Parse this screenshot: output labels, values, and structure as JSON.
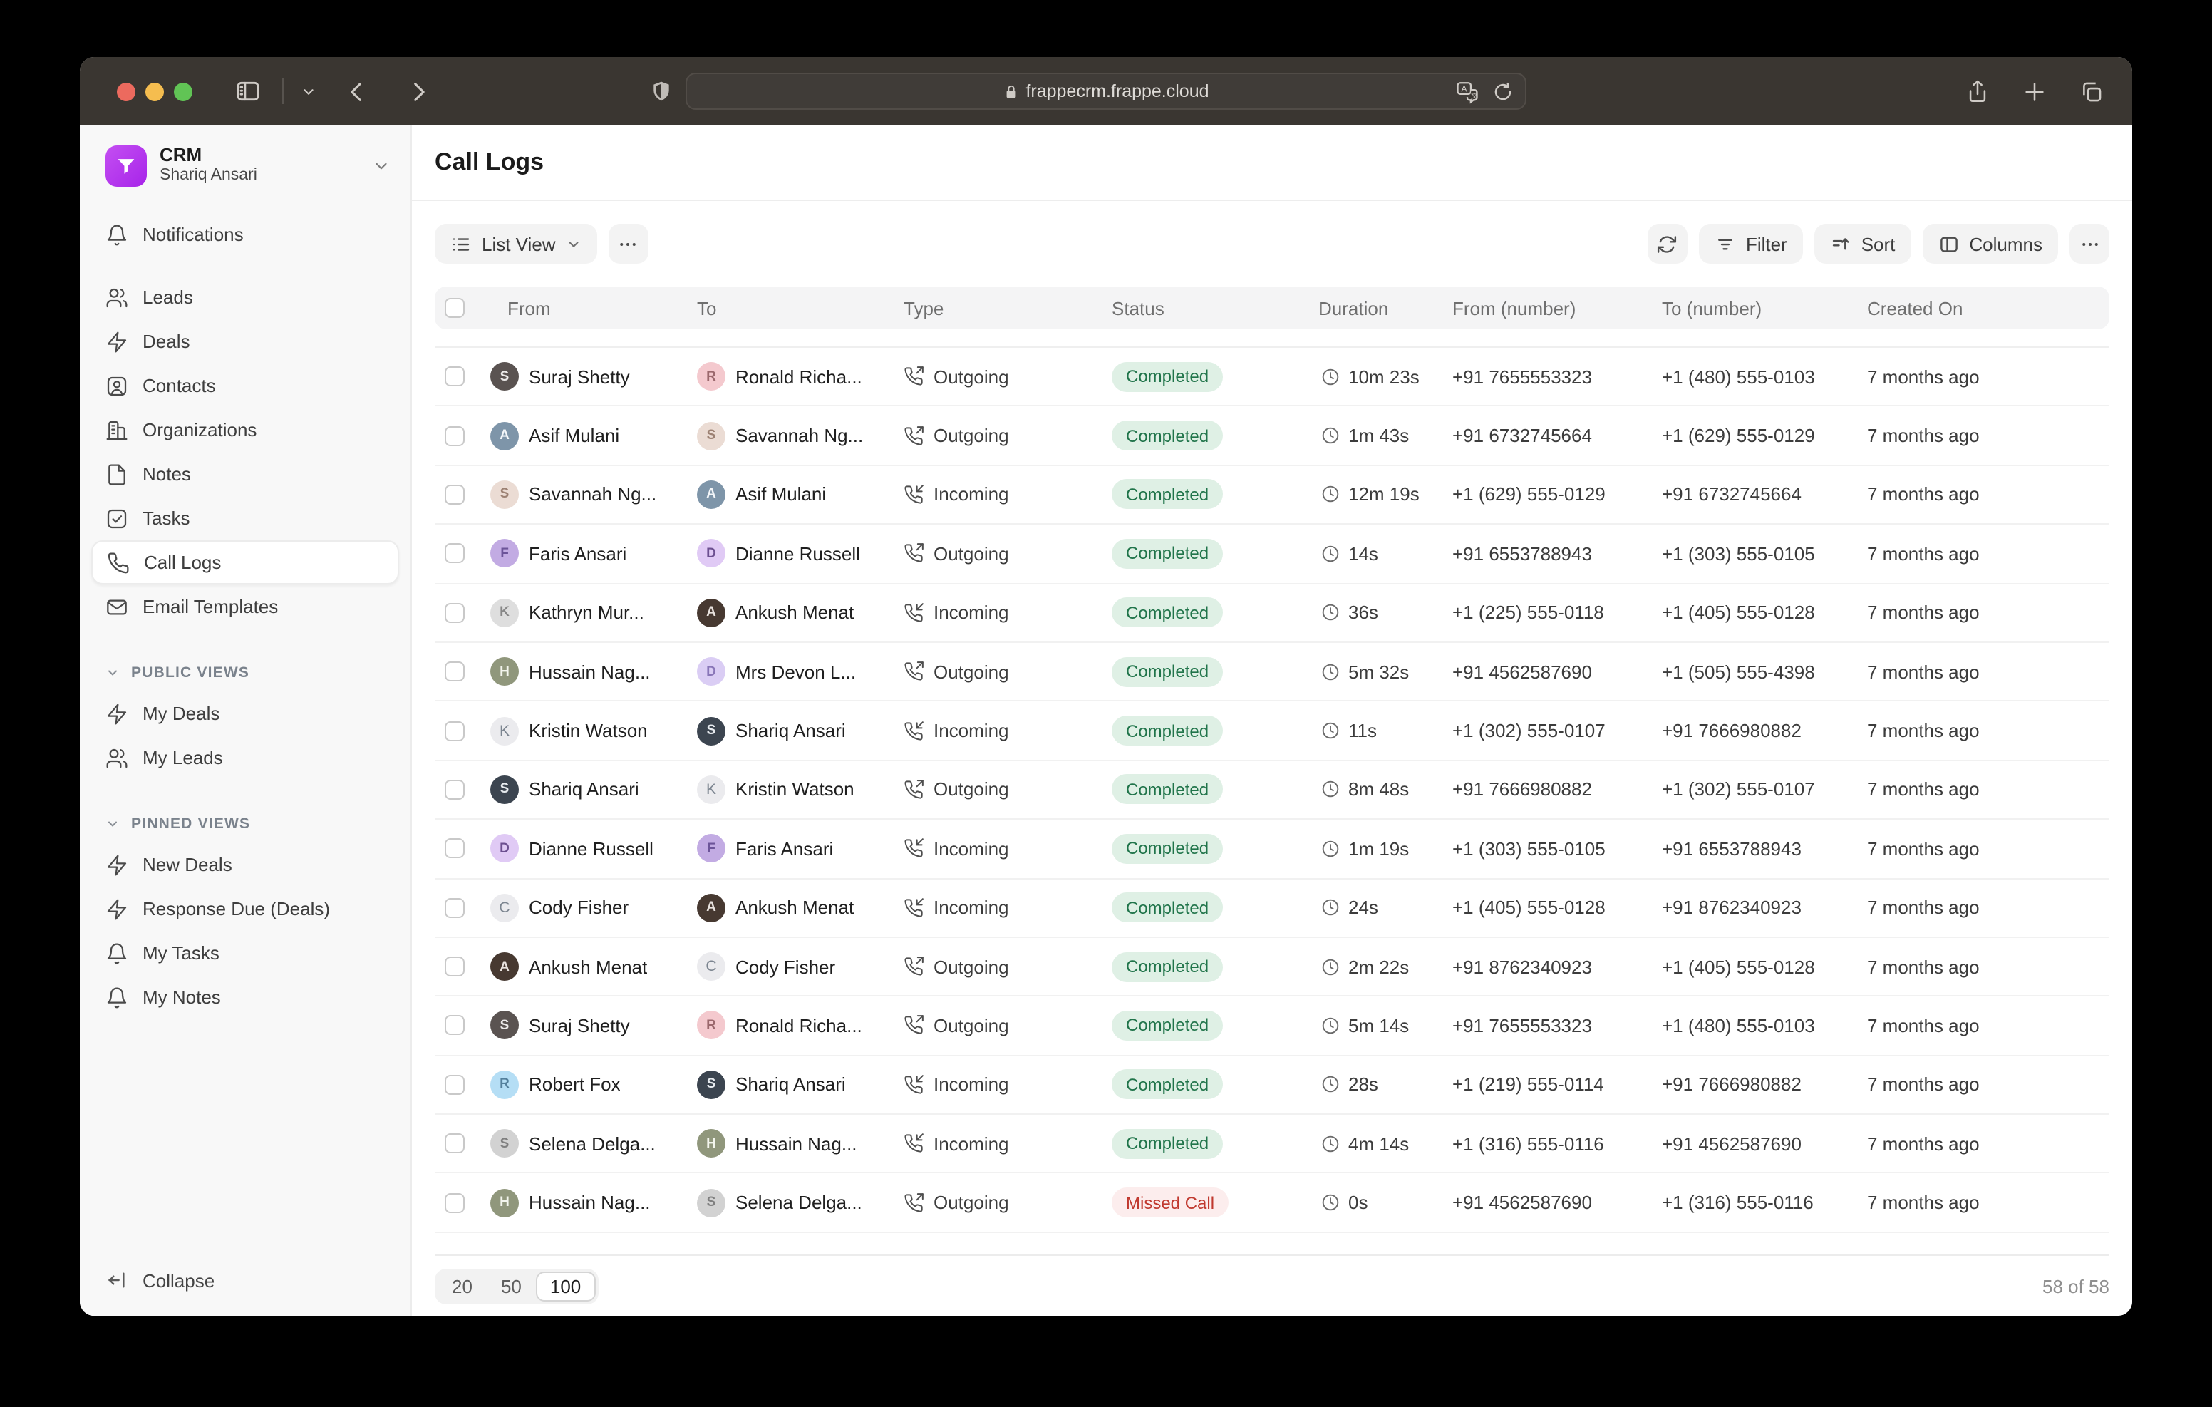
{
  "browser": {
    "url": "frappecrm.frappe.cloud",
    "window_controls": [
      "close",
      "minimize",
      "zoom"
    ]
  },
  "sidebar": {
    "app_name": "CRM",
    "user_name": "Shariq Ansari",
    "items": [
      {
        "label": "Notifications",
        "icon": "bell-icon",
        "active": false
      },
      {
        "label": "Leads",
        "icon": "leads-icon",
        "active": false
      },
      {
        "label": "Deals",
        "icon": "zap-icon",
        "active": false
      },
      {
        "label": "Contacts",
        "icon": "contact-icon",
        "active": false
      },
      {
        "label": "Organizations",
        "icon": "building-icon",
        "active": false
      },
      {
        "label": "Notes",
        "icon": "note-icon",
        "active": false
      },
      {
        "label": "Tasks",
        "icon": "task-icon",
        "active": false
      },
      {
        "label": "Call Logs",
        "icon": "phone-icon",
        "active": true
      },
      {
        "label": "Email Templates",
        "icon": "mail-icon",
        "active": false
      }
    ],
    "sections": [
      {
        "label": "PUBLIC VIEWS",
        "items": [
          {
            "label": "My Deals",
            "icon": "zap-icon"
          },
          {
            "label": "My Leads",
            "icon": "leads-icon"
          }
        ]
      },
      {
        "label": "PINNED VIEWS",
        "items": [
          {
            "label": "New Deals",
            "icon": "zap-icon"
          },
          {
            "label": "Response Due (Deals)",
            "icon": "zap-icon"
          },
          {
            "label": "My Tasks",
            "icon": "bell-icon"
          },
          {
            "label": "My Notes",
            "icon": "bell-icon"
          }
        ]
      }
    ],
    "collapse_label": "Collapse"
  },
  "page": {
    "title": "Call Logs"
  },
  "toolbar": {
    "view_label": "List View",
    "filter_label": "Filter",
    "sort_label": "Sort",
    "columns_label": "Columns"
  },
  "table": {
    "columns": [
      "From",
      "To",
      "Type",
      "Status",
      "Duration",
      "From (number)",
      "To (number)",
      "Created On"
    ],
    "status_styles": {
      "Completed": {
        "bg": "#DFF0E5",
        "fg": "#20744A"
      },
      "Missed Call": {
        "bg": "#FCEDED",
        "fg": "#C0392F"
      }
    },
    "avatars": {
      "Suraj Shetty": {
        "bg": "#5A5351",
        "fg": "#ECEAE9",
        "label": "S",
        "kind": "photo"
      },
      "Ronald Richa...": {
        "bg": "#F4C9CE",
        "fg": "#9B686D",
        "label": "R",
        "kind": "photo"
      },
      "Asif Mulani": {
        "bg": "#7E95A9",
        "fg": "#F3F6F9",
        "label": "A",
        "kind": "photo"
      },
      "Savannah Ng...": {
        "bg": "#EBDCD4",
        "fg": "#9C8173",
        "label": "S",
        "kind": "photo"
      },
      "Faris Ansari": {
        "bg": "#C2ABE3",
        "fg": "#6C5499",
        "label": "F",
        "kind": "photo"
      },
      "Dianne Russell": {
        "bg": "#E0CAF5",
        "fg": "#6C4F90",
        "label": "D",
        "kind": "photo"
      },
      "Kathryn Mur...": {
        "bg": "#DEDEDE",
        "fg": "#878787",
        "label": "K",
        "kind": "photo"
      },
      "Ankush Menat": {
        "bg": "#473931",
        "fg": "#E9E3DF",
        "label": "A",
        "kind": "photo"
      },
      "Hussain Nag...": {
        "bg": "#90977C",
        "fg": "#F3F5ED",
        "label": "H",
        "kind": "photo"
      },
      "Mrs Devon L...": {
        "bg": "#DACDF4",
        "fg": "#8976B8",
        "label": "D",
        "kind": "photo"
      },
      "Kristin Watson": {
        "bg": "#EBEBEE",
        "fg": "#7C8590",
        "label": "K",
        "kind": "letter"
      },
      "Shariq Ansari": {
        "bg": "#3C4550",
        "fg": "#E7EBEF",
        "label": "S",
        "kind": "photo"
      },
      "Cody Fisher": {
        "bg": "#EBEBEE",
        "fg": "#7C8590",
        "label": "C",
        "kind": "letter"
      },
      "Robert Fox": {
        "bg": "#B5DEF5",
        "fg": "#54809C",
        "label": "R",
        "kind": "photo"
      },
      "Selena Delga...": {
        "bg": "#D2D2D2",
        "fg": "#7F7F7F",
        "label": "S",
        "kind": "photo"
      }
    },
    "rows": [
      {
        "from": "Suraj Shetty",
        "to": "Ronald Richa...",
        "type": "Outgoing",
        "status": "Completed",
        "duration": "10m 23s",
        "from_number": "+91 7655553323",
        "to_number": "+1 (480) 555-0103",
        "created": "7 months ago"
      },
      {
        "from": "Asif Mulani",
        "to": "Savannah Ng...",
        "type": "Outgoing",
        "status": "Completed",
        "duration": "1m 43s",
        "from_number": "+91 6732745664",
        "to_number": "+1 (629) 555-0129",
        "created": "7 months ago"
      },
      {
        "from": "Savannah Ng...",
        "to": "Asif Mulani",
        "type": "Incoming",
        "status": "Completed",
        "duration": "12m 19s",
        "from_number": "+1 (629) 555-0129",
        "to_number": "+91 6732745664",
        "created": "7 months ago"
      },
      {
        "from": "Faris Ansari",
        "to": "Dianne Russell",
        "type": "Outgoing",
        "status": "Completed",
        "duration": "14s",
        "from_number": "+91 6553788943",
        "to_number": "+1 (303) 555-0105",
        "created": "7 months ago"
      },
      {
        "from": "Kathryn Mur...",
        "to": "Ankush Menat",
        "type": "Incoming",
        "status": "Completed",
        "duration": "36s",
        "from_number": "+1 (225) 555-0118",
        "to_number": "+1 (405) 555-0128",
        "created": "7 months ago"
      },
      {
        "from": "Hussain Nag...",
        "to": "Mrs Devon L...",
        "type": "Outgoing",
        "status": "Completed",
        "duration": "5m 32s",
        "from_number": "+91 4562587690",
        "to_number": "+1 (505) 555-4398",
        "created": "7 months ago"
      },
      {
        "from": "Kristin Watson",
        "to": "Shariq Ansari",
        "type": "Incoming",
        "status": "Completed",
        "duration": "11s",
        "from_number": "+1 (302) 555-0107",
        "to_number": "+91 7666980882",
        "created": "7 months ago"
      },
      {
        "from": "Shariq Ansari",
        "to": "Kristin Watson",
        "type": "Outgoing",
        "status": "Completed",
        "duration": "8m 48s",
        "from_number": "+91 7666980882",
        "to_number": "+1 (302) 555-0107",
        "created": "7 months ago"
      },
      {
        "from": "Dianne Russell",
        "to": "Faris Ansari",
        "type": "Incoming",
        "status": "Completed",
        "duration": "1m 19s",
        "from_number": "+1 (303) 555-0105",
        "to_number": "+91 6553788943",
        "created": "7 months ago"
      },
      {
        "from": "Cody Fisher",
        "to": "Ankush Menat",
        "type": "Incoming",
        "status": "Completed",
        "duration": "24s",
        "from_number": "+1 (405) 555-0128",
        "to_number": "+91 8762340923",
        "created": "7 months ago"
      },
      {
        "from": "Ankush Menat",
        "to": "Cody Fisher",
        "type": "Outgoing",
        "status": "Completed",
        "duration": "2m 22s",
        "from_number": "+91 8762340923",
        "to_number": "+1 (405) 555-0128",
        "created": "7 months ago"
      },
      {
        "from": "Suraj Shetty",
        "to": "Ronald Richa...",
        "type": "Outgoing",
        "status": "Completed",
        "duration": "5m 14s",
        "from_number": "+91 7655553323",
        "to_number": "+1 (480) 555-0103",
        "created": "7 months ago"
      },
      {
        "from": "Robert Fox",
        "to": "Shariq Ansari",
        "type": "Incoming",
        "status": "Completed",
        "duration": "28s",
        "from_number": "+1 (219) 555-0114",
        "to_number": "+91 7666980882",
        "created": "7 months ago"
      },
      {
        "from": "Selena Delga...",
        "to": "Hussain Nag...",
        "type": "Incoming",
        "status": "Completed",
        "duration": "4m 14s",
        "from_number": "+1 (316) 555-0116",
        "to_number": "+91 4562587690",
        "created": "7 months ago"
      },
      {
        "from": "Hussain Nag...",
        "to": "Selena Delga...",
        "type": "Outgoing",
        "status": "Missed Call",
        "duration": "0s",
        "from_number": "+91 4562587690",
        "to_number": "+1 (316) 555-0116",
        "created": "7 months ago"
      }
    ]
  },
  "pagination": {
    "options": [
      "20",
      "50",
      "100"
    ],
    "selected": "100",
    "count_label": "58 of 58"
  }
}
